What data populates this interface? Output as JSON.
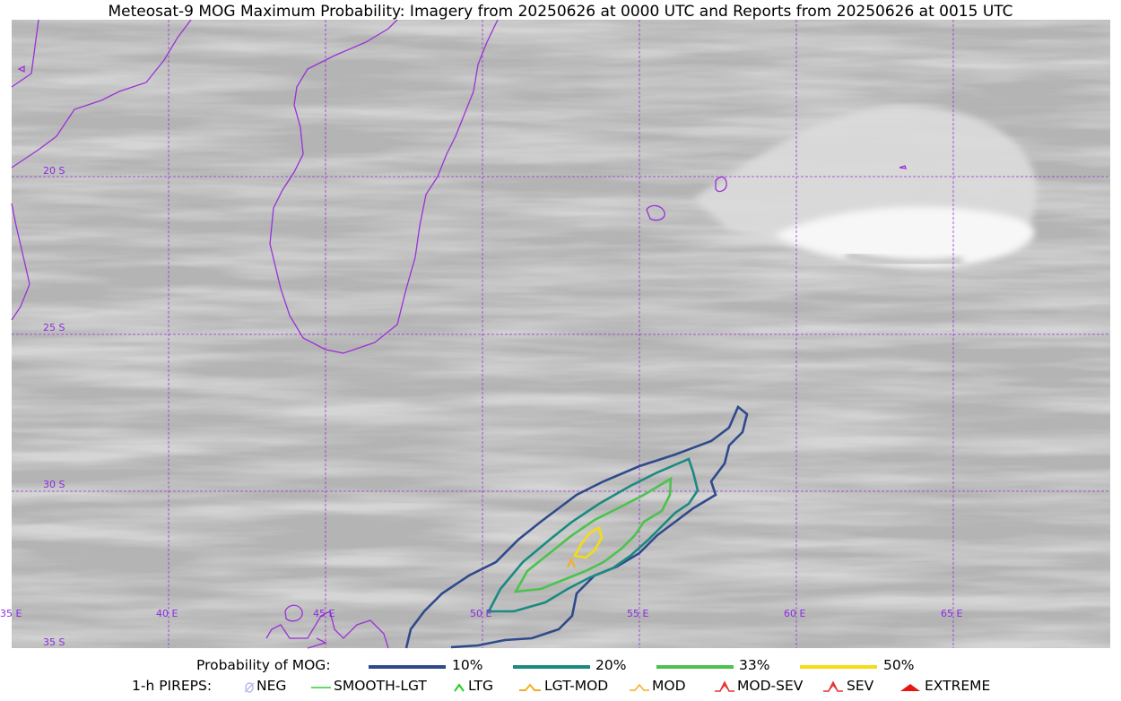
{
  "title": "Meteosat-9 MOG Maximum Probability: Imagery from 20250626 at 0000 UTC and Reports from 20250626 at 0015 UTC",
  "map": {
    "lat_labels": [
      "20 S",
      "25 S",
      "30 S",
      "35 S"
    ],
    "lon_labels": [
      "35 E",
      "40 E",
      "45 E",
      "50 E",
      "55 E",
      "60 E",
      "65 E"
    ],
    "colors": {
      "coast": "#9b30d9",
      "grid": "#9b30d9",
      "contour_10": "#2f4a8c",
      "contour_20": "#1b8a80",
      "contour_33": "#4cc24e",
      "contour_50": "#f5dc16"
    }
  },
  "legend": {
    "probability": {
      "label": "Probability of MOG:",
      "items": [
        {
          "label": "10%",
          "color": "#2f4a8c"
        },
        {
          "label": "20%",
          "color": "#1b8a80"
        },
        {
          "label": "33%",
          "color": "#4cc24e"
        },
        {
          "label": "50%",
          "color": "#f5dc16"
        }
      ]
    },
    "pireps": {
      "label": "1-h PIREPS:",
      "items": [
        {
          "label": "NEG",
          "icon": "neg-icon",
          "color": "#b9b9f0"
        },
        {
          "label": "SMOOTH-LGT",
          "icon": "smooth-lgt-icon",
          "color": "#33cc33"
        },
        {
          "label": "LTG",
          "icon": "ltg-icon",
          "color": "#1fd11f"
        },
        {
          "label": "LGT-MOD",
          "icon": "lgt-mod-icon",
          "color": "#f2b01f"
        },
        {
          "label": "MOD",
          "icon": "mod-icon",
          "color": "#f2b01f"
        },
        {
          "label": "MOD-SEV",
          "icon": "mod-sev-icon",
          "color": "#e83030"
        },
        {
          "label": "SEV",
          "icon": "sev-icon",
          "color": "#e83030"
        },
        {
          "label": "EXTREME",
          "icon": "extreme-icon",
          "color": "#e81515"
        }
      ]
    }
  }
}
